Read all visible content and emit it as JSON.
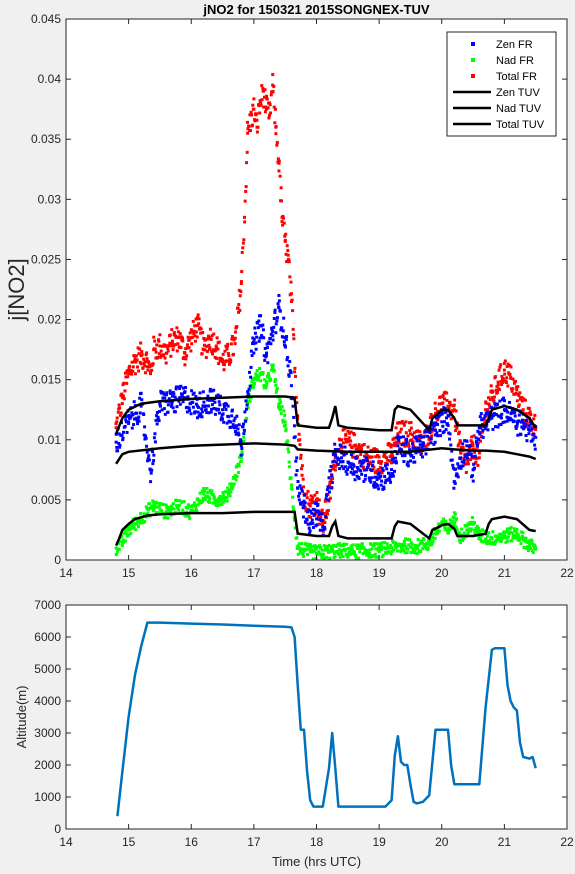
{
  "chart_data": [
    {
      "type": "scatter",
      "title": "jNO2 for 150321 2015SONGNEX-TUV",
      "xlabel": "",
      "ylabel": "j[NO2]",
      "xlim": [
        14,
        22
      ],
      "ylim": [
        0,
        0.045
      ],
      "xticks": [
        "14",
        "15",
        "16",
        "17",
        "18",
        "19",
        "20",
        "21",
        "22"
      ],
      "yticks": [
        "0",
        "0.005",
        "0.01",
        "0.015",
        "0.02",
        "0.025",
        "0.03",
        "0.035",
        "0.04",
        "0.045"
      ],
      "legend_position": "top-right",
      "series": [
        {
          "name": "Zen FR",
          "kind": "points",
          "color": "#0000ff",
          "x": [
            14.8,
            15.0,
            15.2,
            15.35,
            15.5,
            15.7,
            15.9,
            16.1,
            16.3,
            16.5,
            16.7,
            16.8,
            16.9,
            17.0,
            17.1,
            17.2,
            17.3,
            17.4,
            17.5,
            17.6,
            17.7,
            17.8,
            17.9,
            18.0,
            18.1,
            18.2,
            18.3,
            18.4,
            18.6,
            18.8,
            19.0,
            19.2,
            19.3,
            19.5,
            19.7,
            19.9,
            20.0,
            20.1,
            20.2,
            20.3,
            20.4,
            20.5,
            20.6,
            20.8,
            21.0,
            21.2,
            21.4,
            21.5
          ],
          "y": [
            0.0098,
            0.0115,
            0.0128,
            0.0075,
            0.013,
            0.0132,
            0.0135,
            0.0128,
            0.0133,
            0.0125,
            0.0118,
            0.0095,
            0.014,
            0.018,
            0.0195,
            0.017,
            0.019,
            0.021,
            0.0185,
            0.0145,
            0.006,
            0.0045,
            0.003,
            0.004,
            0.0025,
            0.006,
            0.0088,
            0.0085,
            0.0078,
            0.0075,
            0.0068,
            0.0072,
            0.0095,
            0.0088,
            0.0095,
            0.0108,
            0.0115,
            0.012,
            0.0065,
            0.0085,
            0.0095,
            0.0075,
            0.011,
            0.0118,
            0.0125,
            0.0115,
            0.0108,
            0.0102
          ]
        },
        {
          "name": "Nad FR",
          "kind": "points",
          "color": "#00ff00",
          "x": [
            14.8,
            14.9,
            15.0,
            15.2,
            15.4,
            15.6,
            15.8,
            16.0,
            16.2,
            16.4,
            16.6,
            16.8,
            16.9,
            17.0,
            17.1,
            17.2,
            17.3,
            17.4,
            17.5,
            17.6,
            17.7,
            17.8,
            17.9,
            18.0,
            18.2,
            18.4,
            18.6,
            18.8,
            19.0,
            19.2,
            19.4,
            19.6,
            19.8,
            20.0,
            20.1,
            20.2,
            20.3,
            20.4,
            20.5,
            20.6,
            20.8,
            21.0,
            21.2,
            21.4,
            21.5
          ],
          "y": [
            0.001,
            0.0015,
            0.0025,
            0.0035,
            0.0045,
            0.004,
            0.0045,
            0.004,
            0.0055,
            0.005,
            0.0055,
            0.0085,
            0.013,
            0.015,
            0.0155,
            0.0145,
            0.016,
            0.013,
            0.0115,
            0.006,
            0.001,
            0.0008,
            0.0007,
            0.0006,
            0.0007,
            0.0008,
            0.0007,
            0.0008,
            0.0008,
            0.001,
            0.0012,
            0.0011,
            0.0014,
            0.003,
            0.0025,
            0.0035,
            0.002,
            0.0025,
            0.003,
            0.002,
            0.0018,
            0.002,
            0.0022,
            0.0012,
            0.0009
          ]
        },
        {
          "name": "Total FR",
          "kind": "points",
          "color": "#ff0000",
          "x": [
            14.8,
            14.9,
            15.0,
            15.1,
            15.2,
            15.3,
            15.35,
            15.4,
            15.5,
            15.6,
            15.7,
            15.8,
            15.9,
            16.0,
            16.1,
            16.2,
            16.3,
            16.4,
            16.5,
            16.6,
            16.7,
            16.8,
            16.85,
            16.9,
            17.0,
            17.05,
            17.1,
            17.15,
            17.2,
            17.25,
            17.3,
            17.35,
            17.4,
            17.45,
            17.5,
            17.55,
            17.6,
            17.7,
            17.8,
            17.9,
            18.0,
            18.1,
            18.2,
            18.3,
            18.4,
            18.6,
            18.8,
            19.0,
            19.2,
            19.3,
            19.5,
            19.7,
            19.9,
            20.0,
            20.1,
            20.2,
            20.3,
            20.4,
            20.5,
            20.6,
            20.7,
            20.8,
            20.9,
            21.0,
            21.1,
            21.2,
            21.3,
            21.4,
            21.5
          ],
          "y": [
            0.011,
            0.0135,
            0.0155,
            0.0165,
            0.017,
            0.0165,
            0.0155,
            0.0175,
            0.0178,
            0.0172,
            0.0182,
            0.0185,
            0.0172,
            0.0185,
            0.0195,
            0.0175,
            0.0185,
            0.0178,
            0.0165,
            0.017,
            0.018,
            0.023,
            0.0285,
            0.0355,
            0.0375,
            0.036,
            0.038,
            0.039,
            0.0375,
            0.037,
            0.0395,
            0.036,
            0.033,
            0.0285,
            0.0265,
            0.025,
            0.0215,
            0.012,
            0.0055,
            0.0045,
            0.005,
            0.003,
            0.005,
            0.0085,
            0.01,
            0.0095,
            0.0085,
            0.0082,
            0.0088,
            0.0105,
            0.0105,
            0.0095,
            0.0122,
            0.013,
            0.0128,
            0.0125,
            0.009,
            0.008,
            0.0095,
            0.0085,
            0.0125,
            0.0135,
            0.0148,
            0.0158,
            0.0152,
            0.0138,
            0.0125,
            0.0118,
            0.011
          ]
        },
        {
          "name": "Zen TUV",
          "kind": "line",
          "color": "#000000",
          "x": [
            14.8,
            14.9,
            15.0,
            15.2,
            15.5,
            16.0,
            16.5,
            17.0,
            17.5,
            17.65,
            17.7,
            18.0,
            18.2,
            18.25,
            18.3,
            18.35,
            18.5,
            19.0,
            19.2,
            19.25,
            19.3,
            19.5,
            19.8,
            19.85,
            19.9,
            20.0,
            20.1,
            20.2,
            20.25,
            20.3,
            20.5,
            20.7,
            20.75,
            20.8,
            21.0,
            21.2,
            21.4,
            21.5
          ],
          "y": [
            0.0105,
            0.0118,
            0.0125,
            0.013,
            0.0132,
            0.0134,
            0.0135,
            0.0136,
            0.0136,
            0.0135,
            0.0112,
            0.011,
            0.011,
            0.0118,
            0.0128,
            0.0112,
            0.011,
            0.0108,
            0.0108,
            0.0125,
            0.0128,
            0.0125,
            0.0108,
            0.0118,
            0.012,
            0.0125,
            0.0125,
            0.0118,
            0.0112,
            0.0112,
            0.0112,
            0.0112,
            0.0118,
            0.0125,
            0.0128,
            0.0125,
            0.0118,
            0.011
          ]
        },
        {
          "name": "Nad TUV",
          "kind": "line",
          "color": "#000000",
          "x": [
            14.8,
            14.9,
            15.0,
            15.5,
            16.0,
            16.5,
            17.0,
            17.5,
            17.65,
            17.7,
            18.0,
            18.5,
            19.0,
            19.5,
            20.0,
            20.2,
            20.5,
            20.7,
            21.0,
            21.2,
            21.4,
            21.5
          ],
          "y": [
            0.008,
            0.0088,
            0.009,
            0.0093,
            0.0095,
            0.0096,
            0.0097,
            0.0096,
            0.0095,
            0.0092,
            0.0091,
            0.009,
            0.009,
            0.009,
            0.0093,
            0.0092,
            0.0091,
            0.0091,
            0.009,
            0.0088,
            0.0086,
            0.0084
          ]
        },
        {
          "name": "Total TUV",
          "kind": "line",
          "color": "#000000",
          "x": [
            14.8,
            14.85,
            14.9,
            15.0,
            15.1,
            15.3,
            15.5,
            16.0,
            16.5,
            17.0,
            17.5,
            17.65,
            17.7,
            18.0,
            18.2,
            18.25,
            18.3,
            18.35,
            18.5,
            19.0,
            19.2,
            19.25,
            19.3,
            19.5,
            19.8,
            19.85,
            19.9,
            20.0,
            20.1,
            20.2,
            20.25,
            20.3,
            20.5,
            20.7,
            20.75,
            20.8,
            21.0,
            21.2,
            21.4,
            21.5
          ],
          "y": [
            0.0012,
            0.0018,
            0.0025,
            0.003,
            0.0034,
            0.0037,
            0.0038,
            0.0039,
            0.0039,
            0.004,
            0.004,
            0.004,
            0.0022,
            0.002,
            0.002,
            0.0028,
            0.0032,
            0.002,
            0.0018,
            0.0018,
            0.0018,
            0.0028,
            0.0032,
            0.003,
            0.0018,
            0.0025,
            0.0026,
            0.0029,
            0.003,
            0.0026,
            0.002,
            0.002,
            0.002,
            0.0022,
            0.003,
            0.0034,
            0.0036,
            0.0034,
            0.0025,
            0.0024
          ]
        }
      ]
    },
    {
      "type": "line",
      "title": "",
      "xlabel": "Time (hrs UTC)",
      "ylabel": "Altitude(m)",
      "xlim": [
        14,
        22
      ],
      "ylim": [
        0,
        7000
      ],
      "xticks": [
        "14",
        "15",
        "16",
        "17",
        "18",
        "19",
        "20",
        "21",
        "22"
      ],
      "yticks": [
        "0",
        "1000",
        "2000",
        "3000",
        "4000",
        "5000",
        "6000",
        "7000"
      ],
      "series": [
        {
          "color": "#0072bd",
          "x": [
            14.82,
            14.9,
            15.0,
            15.1,
            15.2,
            15.3,
            15.5,
            16.0,
            16.5,
            17.0,
            17.5,
            17.6,
            17.65,
            17.7,
            17.75,
            17.8,
            17.85,
            17.9,
            17.95,
            18.0,
            18.1,
            18.2,
            18.25,
            18.3,
            18.35,
            18.4,
            19.0,
            19.1,
            19.2,
            19.25,
            19.3,
            19.35,
            19.4,
            19.45,
            19.5,
            19.55,
            19.6,
            19.7,
            19.8,
            19.9,
            20.0,
            20.1,
            20.15,
            20.2,
            20.3,
            20.5,
            20.6,
            20.7,
            20.8,
            20.85,
            20.9,
            21.0,
            21.05,
            21.1,
            21.15,
            21.2,
            21.25,
            21.3,
            21.4,
            21.45,
            21.5
          ],
          "y": [
            400,
            1800,
            3500,
            4800,
            5700,
            6450,
            6450,
            6420,
            6390,
            6350,
            6320,
            6300,
            6000,
            4500,
            3100,
            3100,
            1800,
            900,
            700,
            700,
            700,
            1900,
            3000,
            1900,
            700,
            700,
            700,
            700,
            900,
            2300,
            2900,
            2100,
            2000,
            2000,
            1400,
            850,
            800,
            850,
            1050,
            3100,
            3100,
            3100,
            2000,
            1400,
            1400,
            1400,
            1400,
            3800,
            5600,
            5650,
            5650,
            5650,
            4500,
            4000,
            3800,
            3700,
            2700,
            2250,
            2200,
            2250,
            1900
          ]
        }
      ]
    }
  ]
}
